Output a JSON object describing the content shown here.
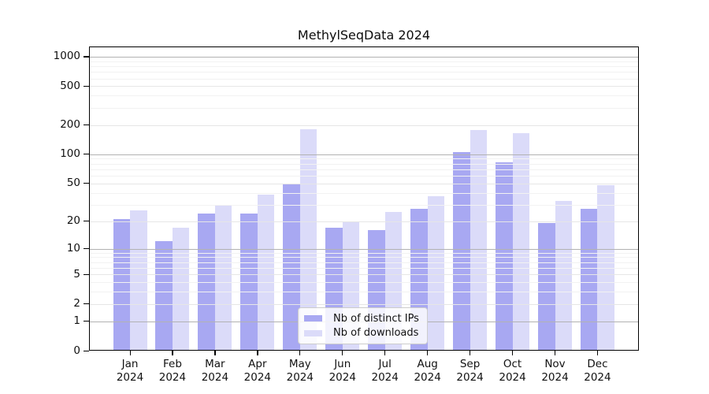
{
  "title": "MethylSeqData 2024",
  "chart_data": {
    "type": "bar",
    "categories": [
      "Jan",
      "Feb",
      "Mar",
      "Apr",
      "May",
      "Jun",
      "Jul",
      "Aug",
      "Sep",
      "Oct",
      "Nov",
      "Dec"
    ],
    "x_year_label": "2024",
    "series": [
      {
        "name": "Nb of distinct IPs",
        "color": "#a8a8f2",
        "values": [
          21,
          12,
          24,
          24,
          49,
          17,
          16,
          27,
          105,
          82,
          19,
          27
        ]
      },
      {
        "name": "Nb of downloads",
        "color": "#dbdbf9",
        "values": [
          26,
          17,
          30,
          38,
          180,
          20,
          25,
          37,
          176,
          165,
          33,
          48
        ]
      }
    ],
    "y_ticks": [
      0,
      1,
      2,
      5,
      10,
      20,
      50,
      100,
      200,
      500,
      1000
    ],
    "y_scale": "log1p",
    "ylim": [
      0,
      1270
    ],
    "grid": true,
    "legend_position": "lower center"
  },
  "colors": {
    "background": "#ffffff",
    "grid_major": "#b2b2b2",
    "grid_mid": "#e6e6e6",
    "grid_minor": "#f2f2f2",
    "axis": "#000000",
    "text": "#111111",
    "legend_border": "#cccccc"
  }
}
